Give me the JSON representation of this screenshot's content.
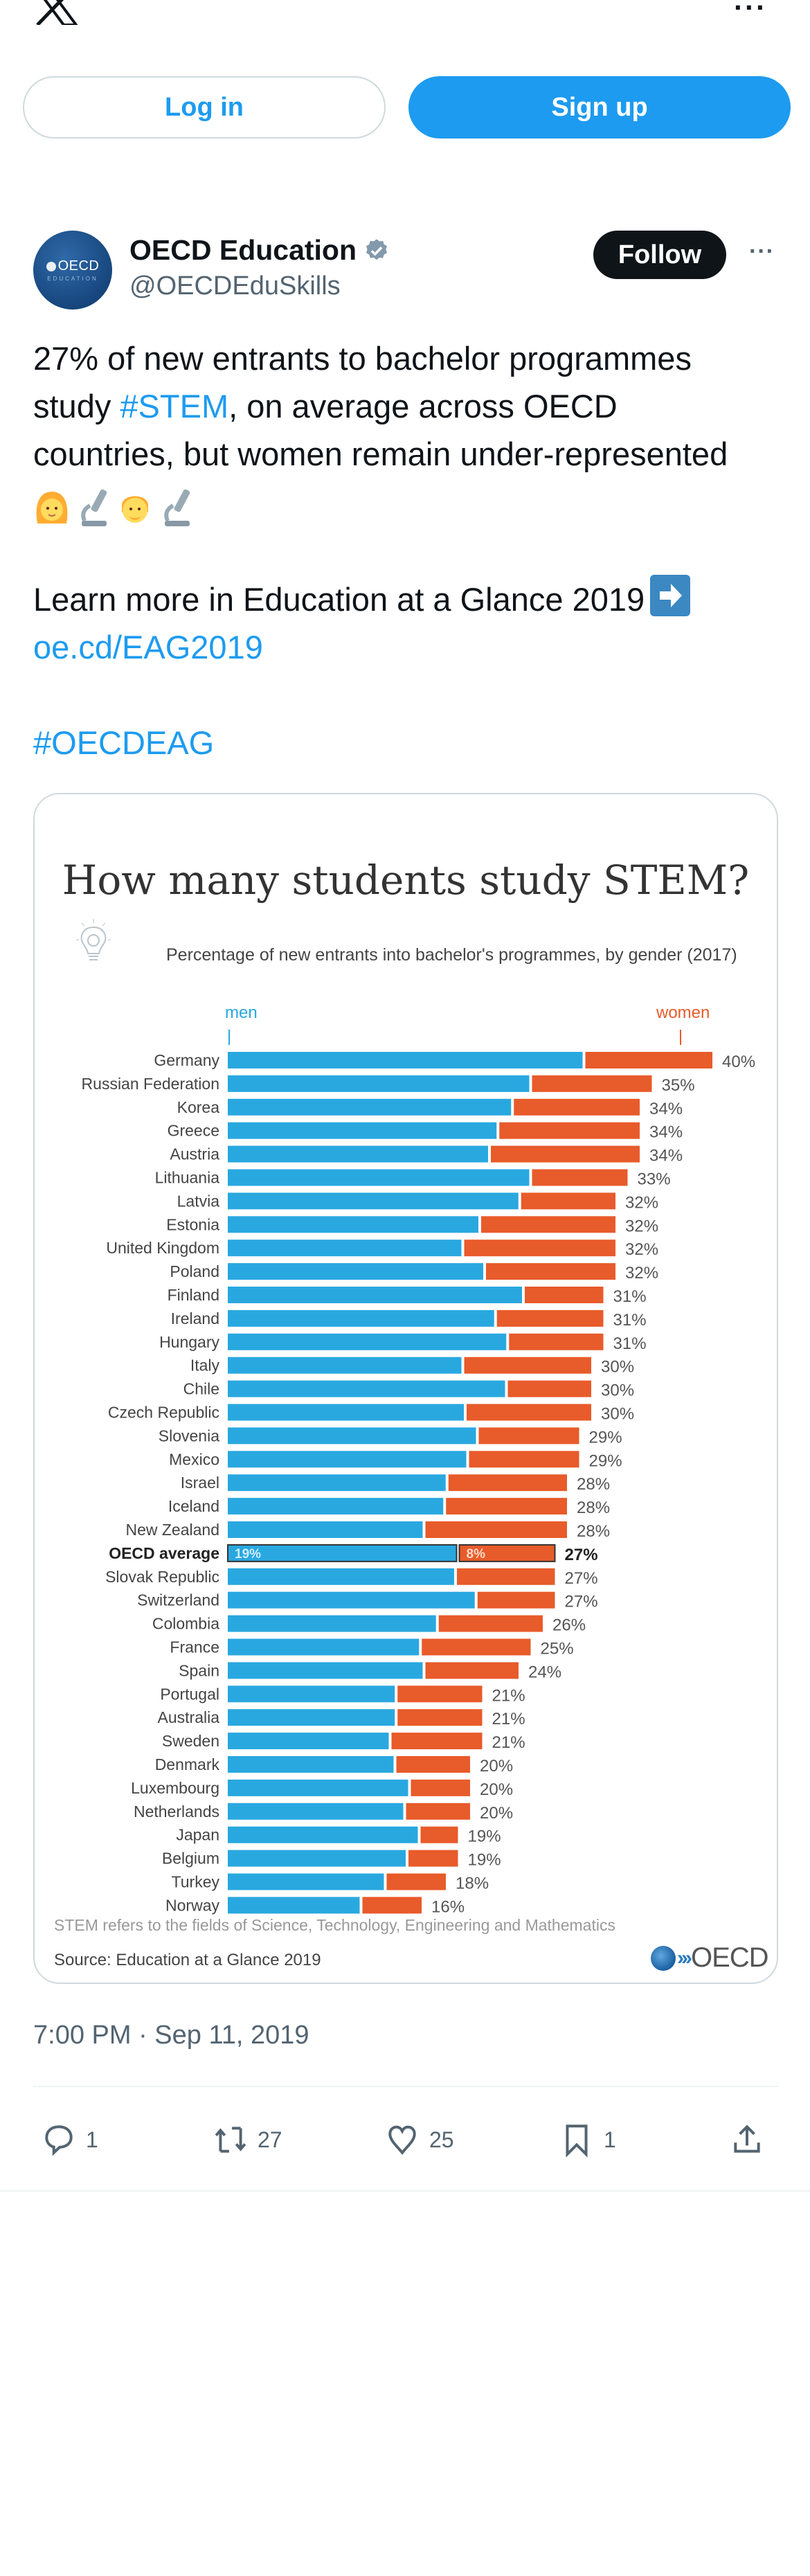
{
  "topbar": {
    "logo": "x-logo-icon",
    "more_icon": "more-dots-icon",
    "more_label": "···"
  },
  "auth": {
    "login_label": "Log in",
    "signup_label": "Sign up"
  },
  "author": {
    "avatar_text": "OECD",
    "avatar_sub": "EDUCATION",
    "name": "OECD Education",
    "verified_icon": "verified-badge-icon",
    "handle": "@OECDEduSkills",
    "follow_label": "Follow",
    "more_label": "···"
  },
  "tweet": {
    "line1": "27% of new entrants to bachelor programmes",
    "line2_pre": "study ",
    "line2_hashtag": "#STEM",
    "line2_post": ", on average across OECD",
    "line3": "countries, but women remain under-represented",
    "emojis": [
      "woman-emoji",
      "microscope-emoji",
      "man-emoji",
      "microscope-emoji"
    ],
    "learn_more": "Learn more in Education at a Glance 2019",
    "arrow_emoji": "right-arrow-emoji",
    "link": "oe.cd/EAG2019",
    "hashtag2": "#OECDEAG"
  },
  "media": {
    "note": "STEM refers to the fields of Science, Technology, Engineering and Mathematics",
    "source": "Source: Education at a Glance 2019",
    "logo_text": "OECD"
  },
  "chart_data": {
    "type": "bar",
    "stacked": true,
    "orientation": "horizontal",
    "title": "How many students study STEM?",
    "subtitle": "Percentage of new entrants into bachelor's programmes, by gender (2017)",
    "xlabel": "",
    "ylabel": "",
    "xlim": [
      0,
      40
    ],
    "grid": false,
    "legend": [
      "men",
      "women"
    ],
    "legend_placement": "top",
    "colors": {
      "men": "#29a8e0",
      "women": "#e85b2a"
    },
    "highlight_category": "OECD average",
    "categories": [
      "Germany",
      "Russian Federation",
      "Korea",
      "Greece",
      "Austria",
      "Lithuania",
      "Latvia",
      "Estonia",
      "United Kingdom",
      "Poland",
      "Finland",
      "Ireland",
      "Hungary",
      "Italy",
      "Chile",
      "Czech Republic",
      "Slovenia",
      "Mexico",
      "Israel",
      "Iceland",
      "New Zealand",
      "OECD average",
      "Slovak Republic",
      "Switzerland",
      "Colombia",
      "France",
      "Spain",
      "Portugal",
      "Australia",
      "Sweden",
      "Denmark",
      "Luxembourg",
      "Netherlands",
      "Japan",
      "Belgium",
      "Turkey",
      "Norway"
    ],
    "series": [
      {
        "name": "men",
        "values": [
          29.4,
          25.0,
          23.5,
          22.3,
          21.6,
          25.0,
          24.1,
          20.8,
          19.4,
          21.2,
          24.4,
          22.1,
          23.1,
          19.4,
          23.0,
          19.6,
          20.6,
          19.8,
          18.1,
          17.9,
          16.2,
          19.0,
          18.8,
          20.5,
          17.3,
          15.9,
          16.2,
          13.9,
          13.9,
          13.4,
          13.8,
          15.0,
          14.6,
          15.8,
          14.8,
          13.0,
          11.0
        ]
      },
      {
        "name": "women",
        "values": [
          10.6,
          10.0,
          10.5,
          11.7,
          12.4,
          8.0,
          7.9,
          11.2,
          12.6,
          10.8,
          6.6,
          8.9,
          7.9,
          10.6,
          7.0,
          10.4,
          8.4,
          9.2,
          9.9,
          10.1,
          11.8,
          8.0,
          8.2,
          6.5,
          8.7,
          9.1,
          7.8,
          7.1,
          7.1,
          7.6,
          6.2,
          5.0,
          5.4,
          3.2,
          4.2,
          5.0,
          5.0
        ]
      }
    ],
    "total_labels": [
      "40%",
      "35%",
      "34%",
      "34%",
      "34%",
      "33%",
      "32%",
      "32%",
      "32%",
      "32%",
      "31%",
      "31%",
      "31%",
      "30%",
      "30%",
      "30%",
      "29%",
      "29%",
      "28%",
      "28%",
      "28%",
      "27%",
      "27%",
      "27%",
      "26%",
      "25%",
      "24%",
      "21%",
      "21%",
      "21%",
      "20%",
      "20%",
      "20%",
      "19%",
      "19%",
      "18%",
      "16%"
    ],
    "inner_labels": {
      "men": "19%",
      "women": "8%"
    }
  },
  "footer": {
    "timestamp": "7:00 PM · Sep 11, 2019",
    "actions": [
      {
        "name": "reply",
        "icon": "reply-icon",
        "count": "1"
      },
      {
        "name": "retweet",
        "icon": "retweet-icon",
        "count": "27"
      },
      {
        "name": "like",
        "icon": "heart-icon",
        "count": "25"
      },
      {
        "name": "bookmark",
        "icon": "bookmark-icon",
        "count": "1"
      },
      {
        "name": "share",
        "icon": "share-icon",
        "count": ""
      }
    ]
  }
}
